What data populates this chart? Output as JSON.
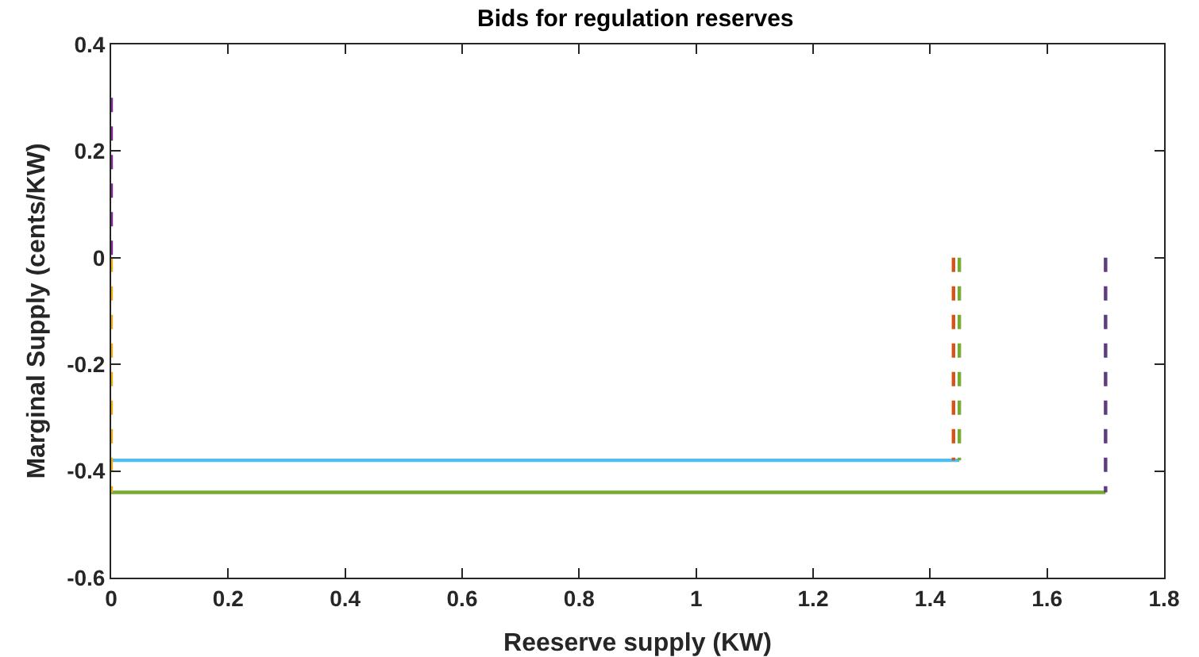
{
  "chart_data": {
    "type": "line",
    "title": "Bids for regulation reserves",
    "xlabel": "Reeserve supply (KW)",
    "ylabel": "Marginal Supply (cents/KW)",
    "xlim": [
      0,
      1.8
    ],
    "xticks": [
      0,
      0.2,
      0.4,
      0.6,
      0.8,
      1,
      1.2,
      1.4,
      1.6,
      1.8
    ],
    "ylim": [
      -0.6,
      0.4
    ],
    "yticks": [
      -0.6,
      -0.4,
      -0.2,
      0,
      0.2,
      0.4
    ],
    "grid": false,
    "marker": "none",
    "series": [
      {
        "color": "#4dbeee",
        "x": [
          0,
          1.45
        ],
        "values": [
          -0.38,
          -0.38
        ],
        "line_style": "solid"
      },
      {
        "color": "#77ac30",
        "x": [
          0,
          1.7
        ],
        "values": [
          -0.44,
          -0.44
        ],
        "line_style": "solid"
      },
      {
        "color": "#edb120",
        "x": [
          0,
          0
        ],
        "values": [
          0,
          -0.44
        ],
        "line_style": "dashed"
      },
      {
        "color": "#7e2f8e",
        "x": [
          0,
          0
        ],
        "values": [
          0.3,
          0
        ],
        "line_style": "dashed"
      },
      {
        "color": "#d95319",
        "x": [
          1.44,
          1.44
        ],
        "values": [
          0,
          -0.38
        ],
        "line_style": "dashed"
      },
      {
        "color": "#77ac30",
        "x": [
          1.45,
          1.45
        ],
        "values": [
          0,
          -0.38
        ],
        "line_style": "dashed"
      },
      {
        "color": "#5e3c82",
        "x": [
          1.7,
          1.7
        ],
        "values": [
          0,
          -0.44
        ],
        "line_style": "dashed"
      }
    ]
  }
}
